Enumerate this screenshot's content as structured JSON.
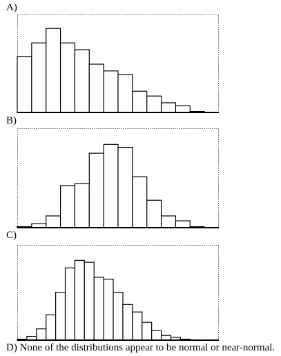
{
  "labels": {
    "a": "A)",
    "b": "B)",
    "c": "C)",
    "d": "D) None of the distributions appear to be normal or near-normal."
  },
  "chart_data": [
    {
      "type": "bar",
      "label": "A)",
      "categories": [
        "1",
        "2",
        "3",
        "4",
        "5",
        "6",
        "7",
        "8",
        "9",
        "10",
        "11",
        "12",
        "13",
        "14"
      ],
      "values": [
        0.58,
        0.72,
        0.87,
        0.72,
        0.65,
        0.5,
        0.43,
        0.39,
        0.22,
        0.17,
        0.1,
        0.07,
        0.01,
        0.0
      ],
      "ylim": [
        0,
        1
      ]
    },
    {
      "type": "bar",
      "label": "B)",
      "categories": [
        "1",
        "2",
        "3",
        "4",
        "5",
        "6",
        "7",
        "8",
        "9",
        "10",
        "11",
        "12",
        "13",
        "14"
      ],
      "values": [
        0.01,
        0.04,
        0.12,
        0.43,
        0.45,
        0.76,
        0.85,
        0.82,
        0.52,
        0.28,
        0.12,
        0.07,
        0.01,
        0.0
      ],
      "ylim": [
        0,
        1
      ]
    },
    {
      "type": "bar",
      "label": "C)",
      "categories": [
        "1",
        "2",
        "3",
        "4",
        "5",
        "6",
        "7",
        "8",
        "9",
        "10",
        "11",
        "12",
        "13",
        "14",
        "15",
        "16",
        "17",
        "18",
        "19",
        "20",
        "21"
      ],
      "values": [
        0.01,
        0.04,
        0.12,
        0.27,
        0.51,
        0.77,
        0.85,
        0.83,
        0.67,
        0.65,
        0.51,
        0.38,
        0.3,
        0.19,
        0.1,
        0.05,
        0.03,
        0.01,
        0.0,
        0.0,
        0.0
      ],
      "ylim": [
        0,
        1
      ]
    }
  ]
}
